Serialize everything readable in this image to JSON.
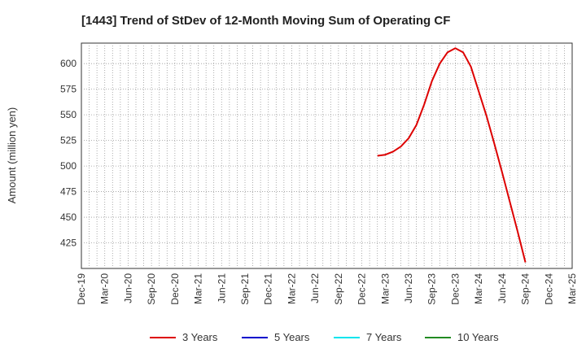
{
  "chart_data": {
    "type": "line",
    "title": "[1443]  Trend of StDev of 12-Month Moving Sum of Operating CF",
    "ylabel": "Amount (million yen)",
    "xlabel": "",
    "ylim": [
      400,
      620
    ],
    "yticks": [
      425,
      450,
      475,
      500,
      525,
      550,
      575,
      600
    ],
    "x_tick_labels": [
      "Dec-19",
      "Mar-20",
      "Jun-20",
      "Sep-20",
      "Dec-20",
      "Mar-21",
      "Jun-21",
      "Sep-21",
      "Dec-21",
      "Mar-22",
      "Jun-22",
      "Sep-22",
      "Dec-22",
      "Mar-23",
      "Jun-23",
      "Sep-23",
      "Dec-23",
      "Mar-24",
      "Jun-24",
      "Sep-24",
      "Dec-24",
      "Mar-25"
    ],
    "grid": true,
    "legend_position": "bottom",
    "series": [
      {
        "name": "3 Years",
        "color": "#dd0000",
        "x": [
          "2023-02",
          "2023-03",
          "2023-04",
          "2023-05",
          "2023-06",
          "2023-07",
          "2023-08",
          "2023-09",
          "2023-10",
          "2023-11",
          "2023-12",
          "2024-01",
          "2024-02",
          "2024-03",
          "2024-04",
          "2024-05",
          "2024-06",
          "2024-07",
          "2024-08",
          "2024-09"
        ],
        "values": [
          510,
          511,
          514,
          519,
          527,
          540,
          560,
          583,
          600,
          611,
          615,
          611,
          597,
          573,
          549,
          522,
          494,
          465,
          436,
          406
        ]
      },
      {
        "name": "5 Years",
        "color": "#0000cc",
        "x": [],
        "values": []
      },
      {
        "name": "7 Years",
        "color": "#00e5ee",
        "x": [],
        "values": []
      },
      {
        "name": "10 Years",
        "color": "#228b22",
        "x": [],
        "values": []
      }
    ]
  }
}
